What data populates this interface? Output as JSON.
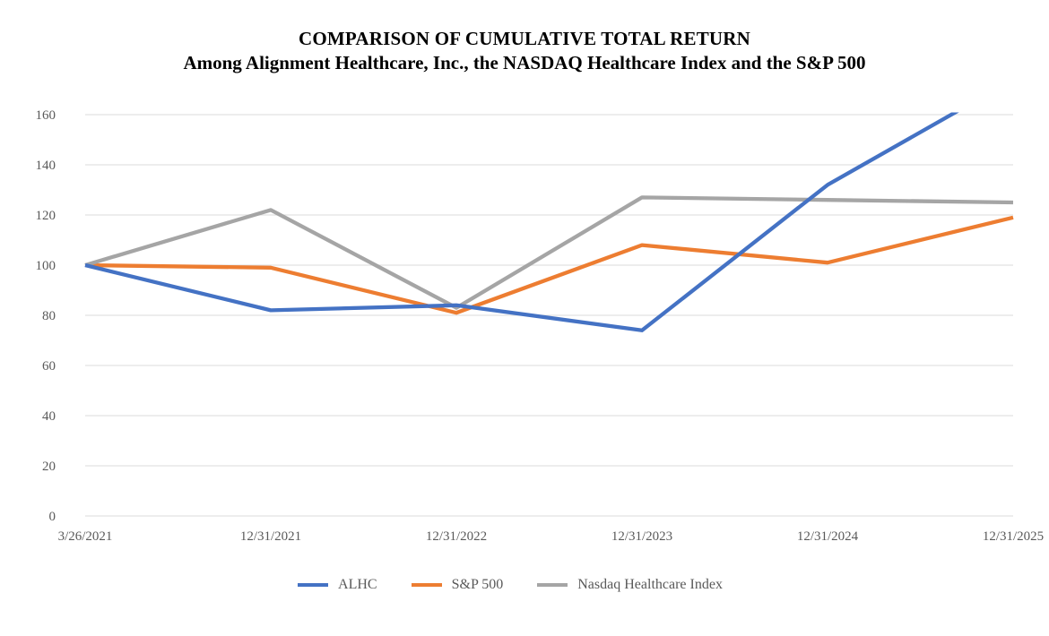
{
  "chart_data": {
    "type": "line",
    "title": "COMPARISON OF CUMULATIVE TOTAL RETURN",
    "subtitle": "Among Alignment Healthcare, Inc., the NASDAQ Healthcare Index and the S&P 500",
    "categories": [
      "3/26/2021",
      "12/31/2021",
      "12/31/2022",
      "12/31/2023",
      "12/31/2024",
      "12/31/2025"
    ],
    "series": [
      {
        "name": "ALHC",
        "color": "#4472C4",
        "values": [
          100,
          82,
          84,
          74,
          132,
          174
        ]
      },
      {
        "name": "S&P 500",
        "color": "#ED7D31",
        "values": [
          100,
          99,
          81,
          108,
          101,
          119
        ]
      },
      {
        "name": "Nasdaq Healthcare Index",
        "color": "#A5A5A5",
        "values": [
          100,
          122,
          83,
          127,
          126,
          125
        ]
      }
    ],
    "xlabel": "",
    "ylabel": "",
    "ylim": [
      0,
      160
    ],
    "yticks": [
      0,
      20,
      40,
      60,
      80,
      100,
      120,
      140,
      160
    ],
    "grid": true,
    "legend_position": "bottom",
    "draw_order_bottom_to_top": [
      1,
      2,
      0
    ],
    "clip_note": "ALHC line exits the top of the plot area (above 160) between 12/31/2024 and 12/31/2025 and is clipped at the 160 gridline"
  },
  "styles": {
    "grid_color": "#E2E2E2",
    "axis_text_color": "#595959",
    "title_color": "#000000",
    "background": "#FFFFFF"
  }
}
